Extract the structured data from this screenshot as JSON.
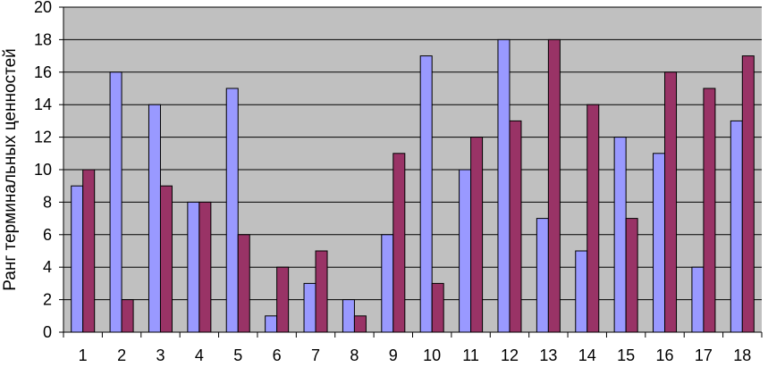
{
  "chart_data": {
    "type": "bar",
    "title": "",
    "xlabel": "",
    "ylabel": "Ранг терминальных ценностей",
    "ylim": [
      0,
      20
    ],
    "yticks": [
      0,
      2,
      4,
      6,
      8,
      10,
      12,
      14,
      16,
      18,
      20
    ],
    "grid": true,
    "legend": "none",
    "categories": [
      "1",
      "2",
      "3",
      "4",
      "5",
      "6",
      "7",
      "8",
      "9",
      "10",
      "11",
      "12",
      "13",
      "14",
      "15",
      "16",
      "17",
      "18"
    ],
    "series": [
      {
        "color": "#9999ff",
        "values": [
          9,
          16,
          14,
          8,
          15,
          1,
          3,
          2,
          6,
          17,
          10,
          18,
          7,
          5,
          12,
          11,
          4,
          13
        ]
      },
      {
        "color": "#993366",
        "values": [
          10,
          2,
          9,
          8,
          6,
          4,
          5,
          1,
          11,
          3,
          12,
          13,
          18,
          14,
          7,
          16,
          15,
          17
        ]
      }
    ],
    "plot_background": "#c0c0c0",
    "gridline_color": "#000000"
  }
}
